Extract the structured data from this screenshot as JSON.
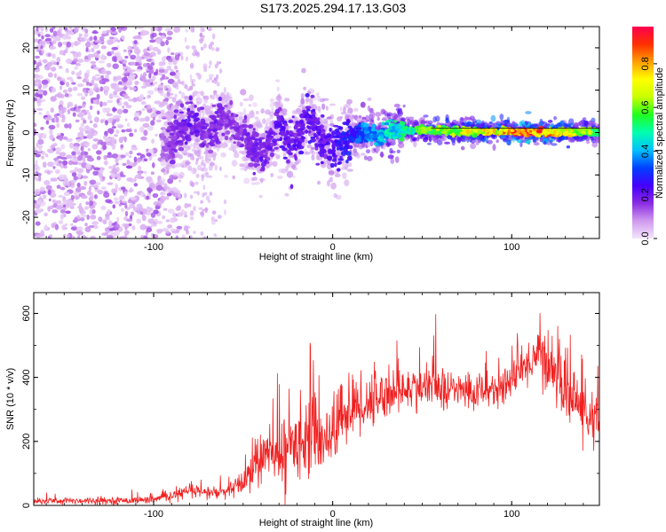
{
  "title": "S173.2025.294.17.13.G03",
  "chart_data": [
    {
      "type": "heatmap",
      "name": "spectrogram",
      "xlabel": "Height of straight line (km)",
      "ylabel": "Frequency (Hz)",
      "xlim": [
        -167,
        149
      ],
      "ylim": [
        -25,
        25
      ],
      "xticks": [
        -100,
        0,
        100
      ],
      "yticks": [
        -20,
        -10,
        0,
        10,
        20
      ],
      "colorbar": {
        "label": "Normalized spectral amplitude",
        "range": [
          0,
          0.97
        ],
        "ticks": [
          "0.0",
          "0.2",
          "0.4",
          "0.6",
          "0.8"
        ],
        "colors": [
          "#f3e6fb",
          "#cf99ee",
          "#8a2be2",
          "#4400ff",
          "#0040ff",
          "#00c0ff",
          "#00ffb0",
          "#20ff20",
          "#c8ff00",
          "#ffff00",
          "#ffa000",
          "#ff3000",
          "#ff0050"
        ]
      },
      "ridge": [
        [
          -95,
          -4,
          0.12
        ],
        [
          -90,
          -3,
          0.18
        ],
        [
          -85,
          0,
          0.2
        ],
        [
          -80,
          3,
          0.22
        ],
        [
          -75,
          1,
          0.2
        ],
        [
          -70,
          -1,
          0.18
        ],
        [
          -65,
          2,
          0.2
        ],
        [
          -60,
          4,
          0.18
        ],
        [
          -55,
          1,
          0.17
        ],
        [
          -50,
          0,
          0.18
        ],
        [
          -45,
          -3,
          0.2
        ],
        [
          -40,
          -5,
          0.22
        ],
        [
          -35,
          -2,
          0.2
        ],
        [
          -30,
          2,
          0.22
        ],
        [
          -25,
          -3,
          0.24
        ],
        [
          -20,
          -1,
          0.22
        ],
        [
          -15,
          3,
          0.25
        ],
        [
          -10,
          1,
          0.24
        ],
        [
          -5,
          -2,
          0.22
        ],
        [
          0,
          -4,
          0.25
        ],
        [
          5,
          -3,
          0.27
        ],
        [
          10,
          -1,
          0.3
        ],
        [
          15,
          0,
          0.35
        ],
        [
          20,
          0,
          0.4
        ],
        [
          25,
          -1,
          0.42
        ],
        [
          30,
          0,
          0.48
        ],
        [
          40,
          0.5,
          0.55
        ],
        [
          50,
          0.5,
          0.6
        ],
        [
          60,
          0.5,
          0.65
        ],
        [
          70,
          0.3,
          0.7
        ],
        [
          80,
          0.3,
          0.75
        ],
        [
          90,
          0.2,
          0.8
        ],
        [
          100,
          0.2,
          0.88
        ],
        [
          110,
          0.1,
          0.95
        ],
        [
          120,
          0.1,
          0.9
        ],
        [
          130,
          0.1,
          0.8
        ],
        [
          140,
          0.1,
          0.7
        ],
        [
          149,
          0.1,
          0.6
        ]
      ]
    },
    {
      "type": "line",
      "name": "snr",
      "xlabel": "Height of straight line (km)",
      "ylabel": "SNR (10 * v/v)",
      "xlim": [
        -167,
        149
      ],
      "ylim": [
        0,
        665
      ],
      "xticks": [
        -100,
        0,
        100
      ],
      "yticks": [
        0,
        200,
        400,
        600
      ],
      "color": "#f02020",
      "series": [
        {
          "name": "SNR",
          "x": [
            -167,
            -140,
            -120,
            -100,
            -90,
            -80,
            -70,
            -60,
            -50,
            -45,
            -40,
            -35,
            -30,
            -25,
            -20,
            -15,
            -10,
            -5,
            0,
            5,
            10,
            15,
            20,
            25,
            30,
            40,
            50,
            60,
            70,
            80,
            90,
            100,
            105,
            110,
            115,
            120,
            130,
            140,
            149
          ],
          "mean": [
            15,
            15,
            15,
            18,
            30,
            45,
            40,
            40,
            70,
            120,
            150,
            160,
            150,
            180,
            200,
            230,
            220,
            210,
            230,
            280,
            300,
            310,
            320,
            340,
            350,
            360,
            370,
            365,
            360,
            355,
            360,
            390,
            420,
            450,
            480,
            450,
            360,
            300,
            240
          ],
          "noise": [
            10,
            10,
            10,
            10,
            15,
            20,
            20,
            20,
            40,
            60,
            80,
            90,
            90,
            100,
            110,
            120,
            110,
            100,
            100,
            100,
            95,
            90,
            85,
            80,
            70,
            65,
            60,
            55,
            55,
            55,
            55,
            55,
            60,
            65,
            80,
            90,
            90,
            85,
            80
          ]
        }
      ]
    }
  ]
}
